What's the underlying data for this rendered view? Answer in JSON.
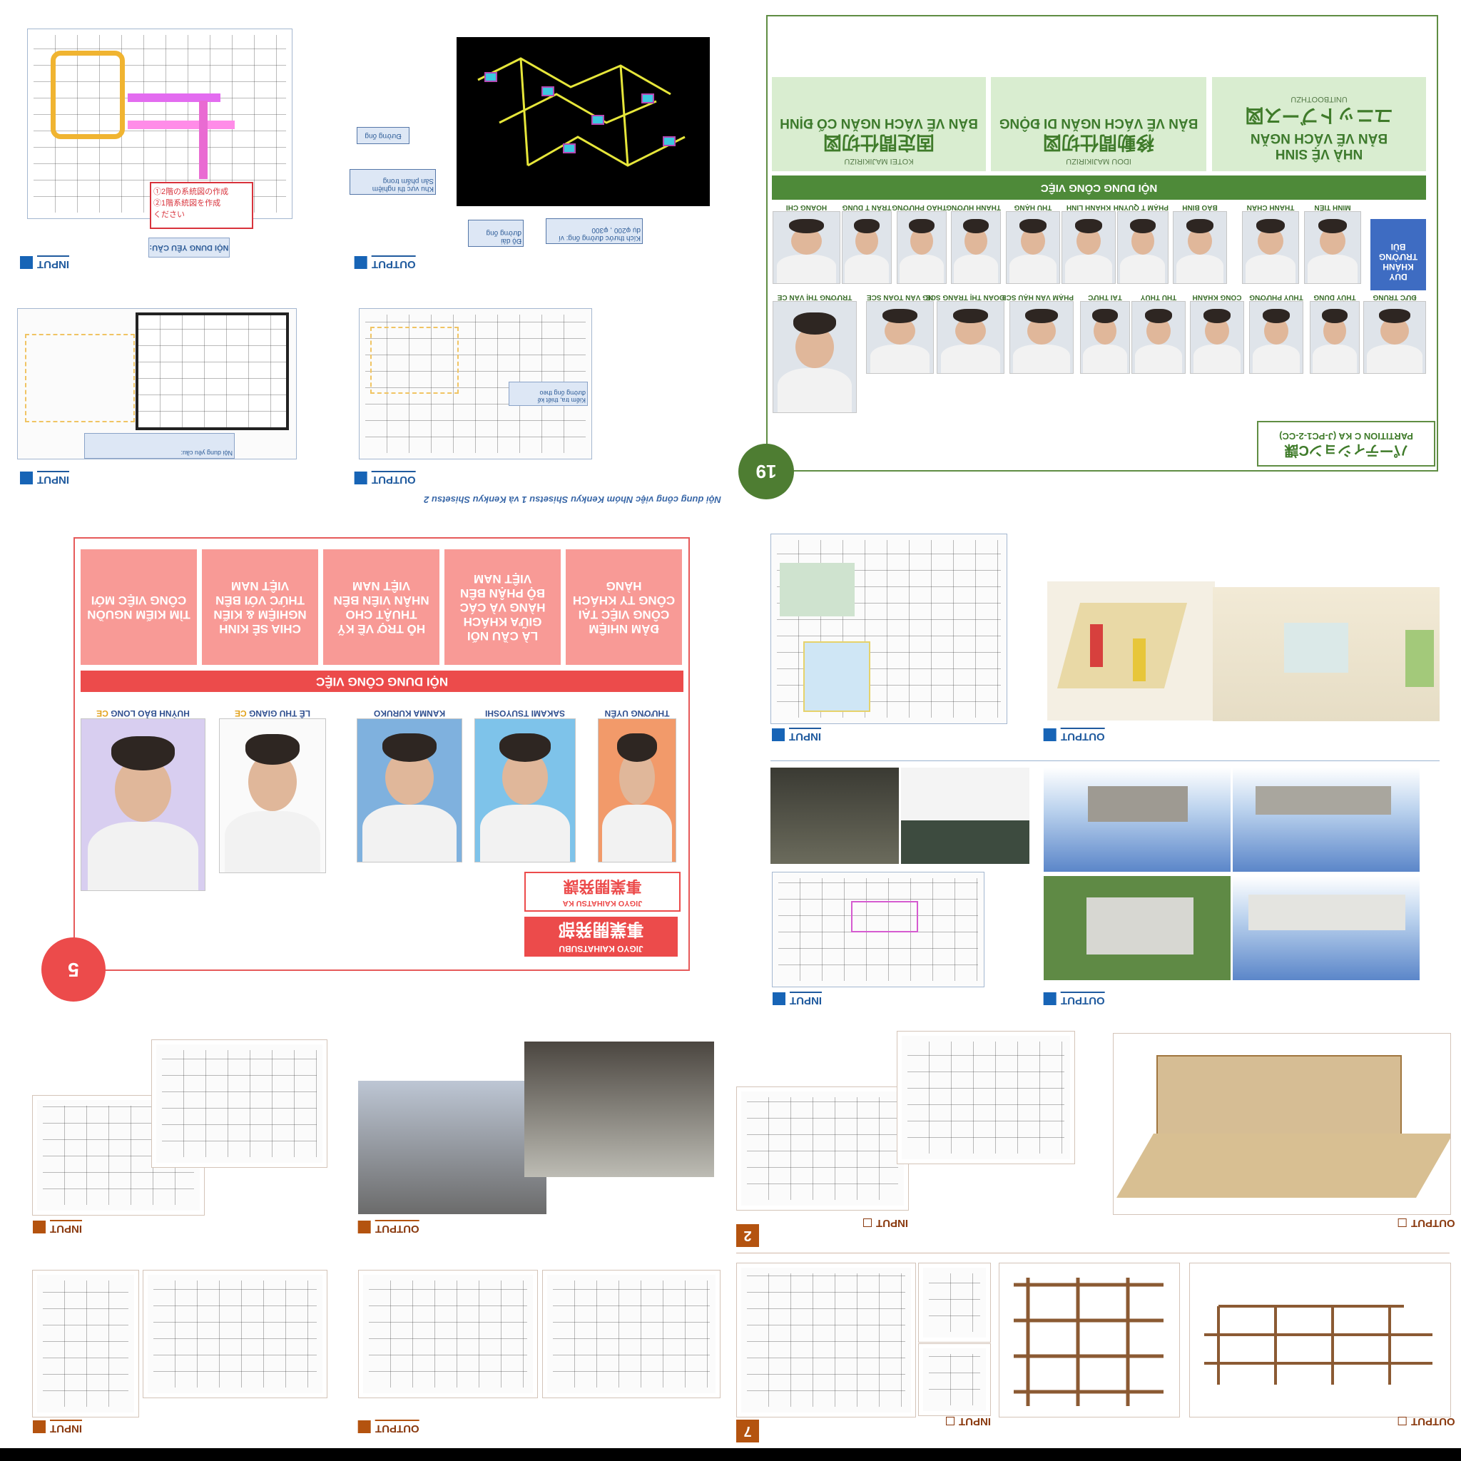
{
  "colors": {
    "blue": "#1764b6",
    "green": "#4e8a39",
    "red": "#ec4b4b",
    "brown": "#b4530f",
    "light_green": "#d9edd0",
    "salmon": "#f89a96"
  },
  "top_left": {
    "input_label": "INPUT",
    "output_label": "OUTPUT",
    "callout_red": "①2階の系統図の作成\n②1階系統図を作成\nください",
    "callout_request": "NỘI DUNG YÊU CẦU:",
    "note_duong_ong": "Đường ống",
    "note_khu_vuc": "Khu vực thi nghiệm\nSản phẩm trong",
    "note_do_dai": "Độ dài\nđường ống",
    "note_kich_thuoc": "Kích thước đường ống: ví\ndụ φ200 , φ300",
    "note_input2": "Nội dung yêu cầu:",
    "note_output2": "Kiểm tra, thiết kế\nđường ống theo",
    "caption": "Nội dung công việc Nhóm Kenkyu Shisetsu 1 và Kenkyu Shisetsu 2"
  },
  "green_panel": {
    "number": "19",
    "card1": {
      "title": "BẢN VẼ VÁCH NGĂN CỐ ĐỊNH",
      "jp": "固定間仕切図",
      "romaji": "KOTEI MAJIKIRIZU"
    },
    "card2": {
      "title": "BẢN VẼ VÁCH NGĂN DI ĐỘNG",
      "jp": "移動間仕切図",
      "romaji": "IDOU MAJIKIRIZU"
    },
    "card3": {
      "title1": "NHÀ VỆ SINH",
      "title2": "BẢN VẼ VÁCH NGĂN",
      "jp": "ユニットブース図",
      "romaji": "UNITBOOTHZU"
    },
    "bar": "NỘI DUNG CÔNG VIỆC",
    "row1": [
      "HOÀNG CHÍ",
      "TRẦN T DUNG",
      "THẢO PHƯƠNG",
      "THANH HƯƠNG",
      "THU HẠNG",
      "KHÁNH LINH",
      "PHẠM T QUỲNH",
      "BẢO BÌNH",
      "THANH CHẨN",
      "MINH TIẾN"
    ],
    "row2": [
      "TRƯƠNG THỊ VÂN CE",
      "NG VĂN TOÀN SCE",
      "ĐOÀN THỊ TRANG SCE",
      "PHẠM VĂN HẬU SCE",
      "TÂI THỨC",
      "THU THỦY",
      "CÔNG KHÁNH",
      "THÙY PHƯƠNG",
      "THỦY DUNG",
      "ĐỨC TRUNG"
    ],
    "blue_box": "DUY\nKHÁNH\nTRƯỜNG\nBÙI",
    "partition_jp": "パーティションC課",
    "partition_en": "PARTITION C KA (J-PC1-2-CC)"
  },
  "red_panel": {
    "number": "5",
    "cards": [
      "TÌM KIẾM NGUỒN CÔNG VIỆC MỚI",
      "CHIA SẺ KINH NGHIỆM & KIẾN THỨC VỚI BÊN VIỆT NAM",
      "HỖ TRỢ VỀ KỸ THUẬT CHO NHÂN VIÊN BÊN VIỆT NAM",
      "LÀ CẦU NỐI GIỮA KHÁCH HÀNG VÀ CÁC BỘ PHẬN BÊN VIỆT NAM",
      "ĐẢM NHIỆM CÔNG VIỆC TẠI CÔNG TY KHÁCH HÀNG"
    ],
    "bar": "NỘI DUNG CÔNG VIỆC",
    "people": [
      {
        "name": "THƯƠNG UYÊN",
        "tag": ""
      },
      {
        "name": "SAKAMI TSUYOSHI",
        "tag": ""
      },
      {
        "name": "KANMA KURUKO",
        "tag": ""
      },
      {
        "name": "LÊ THU GIANG",
        "tag": "CE"
      },
      {
        "name": "HUỲNH BẢO LONG",
        "tag": "CE"
      }
    ],
    "dept1_jp": "事業開発課",
    "dept1_romaji": "JIGYO KAIHATSU KA",
    "dept2_jp": "事業開発部",
    "dept2_romaji": "JIGYO KAIHATSUBU"
  },
  "bottom": {
    "input_label": "INPUT",
    "output_label": "OUTPUT",
    "num7": "7",
    "num2": "2"
  }
}
